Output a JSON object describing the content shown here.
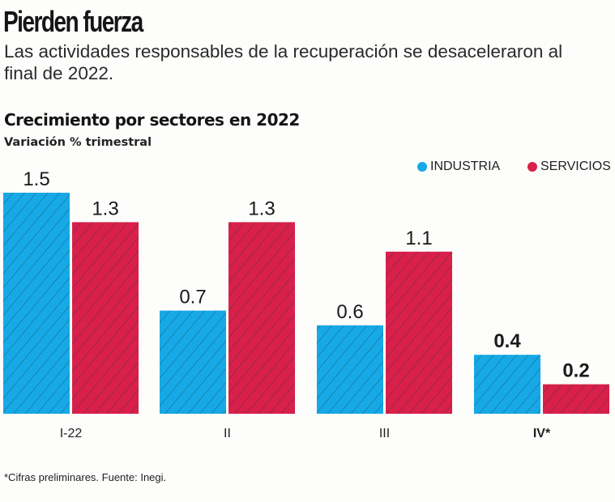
{
  "header": {
    "title": "Pierden fuerza",
    "subtitle": "Las actividades responsables de la recuperación se desaceleraron al final de 2022."
  },
  "footnote": "*Cifras preliminares. Fuente: Inegi.",
  "colors": {
    "industria": "#16a9e6",
    "servicios": "#d9204a",
    "hatch": "#1b3a4a"
  },
  "chart_data": {
    "type": "bar",
    "title": "Crecimiento por sectores en 2022",
    "subtitle": "Variación % trimestral",
    "xlabel": "",
    "ylabel": "",
    "ylim": [
      0,
      1.5
    ],
    "grid": false,
    "legend_position": "top-right",
    "categories": [
      "I-22",
      "II",
      "III",
      "IV*"
    ],
    "series": [
      {
        "name": "INDUSTRIA",
        "values": [
          1.5,
          0.7,
          0.6,
          0.4
        ],
        "labels": [
          "1.5",
          "0.7",
          "0.6",
          "0.4"
        ]
      },
      {
        "name": "SERVICIOS",
        "values": [
          1.3,
          1.3,
          1.1,
          0.2
        ],
        "labels": [
          "1.3",
          "1.3",
          "1.1",
          "0.2"
        ]
      }
    ],
    "highlight_category": "IV*"
  }
}
